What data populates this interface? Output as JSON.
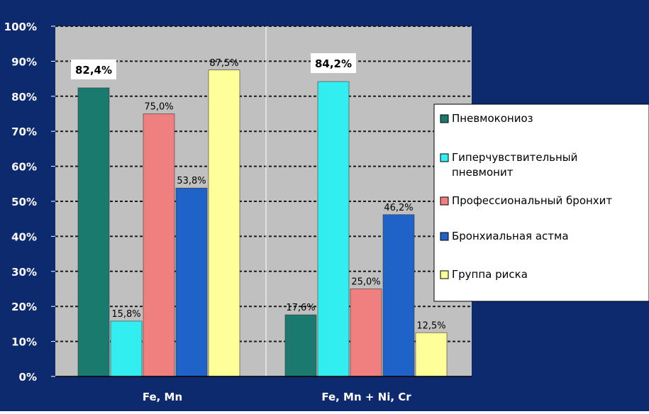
{
  "colors": {
    "background": "#0e2a6e",
    "plot_area": "#c0c0c0",
    "axis_text": "#ffffff",
    "legend_bg": "#ffffff",
    "grid": "#1a1a1a"
  },
  "chart_data": {
    "type": "bar",
    "title": "",
    "xlabel": "",
    "ylabel": "",
    "ylim": [
      0,
      100
    ],
    "y_ticks": [
      "0%",
      "10%",
      "20%",
      "30%",
      "40%",
      "50%",
      "60%",
      "70%",
      "80%",
      "90%",
      "100%"
    ],
    "grid": true,
    "legend_position": "right",
    "categories": [
      "Fe, Mn",
      "Fe, Mn + Ni, Cr"
    ],
    "series": [
      {
        "name": "Пневмокониоз",
        "color": "#1a7a6e",
        "values": [
          82.4,
          17.6
        ],
        "labels": [
          "82,4%",
          "17,6%"
        ]
      },
      {
        "name": "Гиперчувствительный пневмонит",
        "color": "#33eef0",
        "values": [
          15.8,
          84.2
        ],
        "labels": [
          "15,8%",
          "84,2%"
        ]
      },
      {
        "name": "Профессиональный бронхит",
        "color": "#f08080",
        "values": [
          75.0,
          25.0
        ],
        "labels": [
          "75,0%",
          "25,0%"
        ]
      },
      {
        "name": "Бронхиальная астма",
        "color": "#1f63c8",
        "values": [
          53.8,
          46.2
        ],
        "labels": [
          "53,8%",
          "46,2%"
        ]
      },
      {
        "name": "Группа риска",
        "color": "#ffff99",
        "values": [
          87.5,
          12.5
        ],
        "labels": [
          "87,5%",
          "12,5%"
        ]
      }
    ],
    "highlighted_labels": [
      "82,4%",
      "84,2%"
    ]
  }
}
